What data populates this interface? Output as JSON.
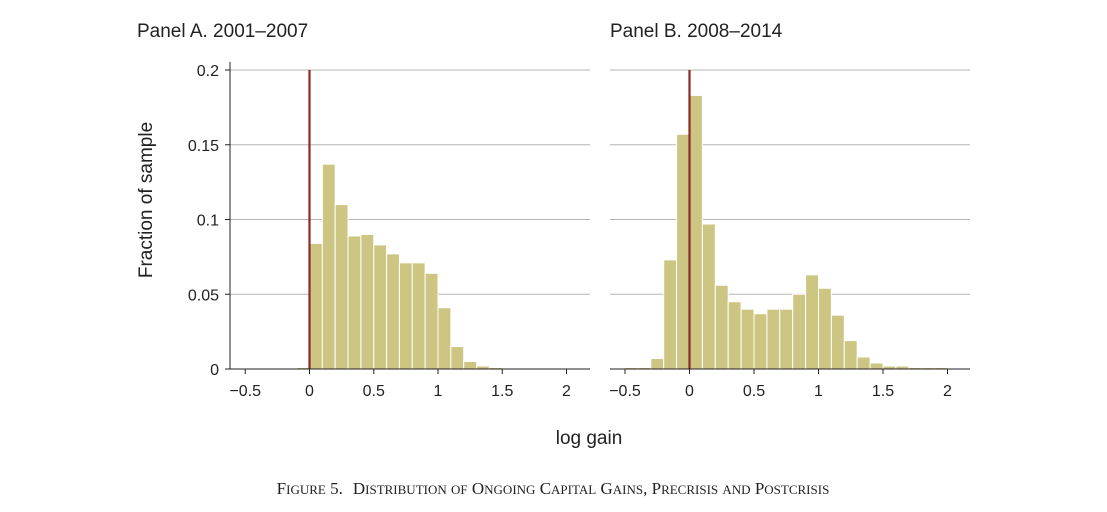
{
  "figure": {
    "ylabel": "Fraction of sample",
    "xlabel": "log gain",
    "caption": {
      "label": "Figure 5.",
      "title": "Distribution of Ongoing Capital Gains, Precrisis and Postcrisis"
    }
  },
  "colors": {
    "bar_fill": "#cdc682",
    "bar_edge": "#ffffff",
    "zero_line": "#8b2a2a",
    "grid": "#b5b5b5",
    "axis": "#222222"
  },
  "chart_data": [
    {
      "type": "bar",
      "title": "Panel A. 2001–2007",
      "xlabel": "log gain",
      "ylabel": "Fraction of sample",
      "xlim": [
        -0.6,
        2.1
      ],
      "ylim": [
        0,
        0.2
      ],
      "bin_width": 0.1,
      "bin_starts": [
        -0.6,
        -0.5,
        -0.4,
        -0.3,
        -0.2,
        -0.1,
        0.0,
        0.1,
        0.2,
        0.3,
        0.4,
        0.5,
        0.6,
        0.7,
        0.8,
        0.9,
        1.0,
        1.1,
        1.2,
        1.3,
        1.4,
        1.5,
        1.6,
        1.7,
        1.8,
        1.9,
        2.0
      ],
      "values": [
        0,
        0,
        0,
        0,
        0,
        0.001,
        0.084,
        0.137,
        0.11,
        0.089,
        0.09,
        0.083,
        0.077,
        0.071,
        0.071,
        0.064,
        0.041,
        0.015,
        0.005,
        0.002,
        0.001,
        0,
        0,
        0,
        0,
        0,
        0
      ],
      "xticks": [
        -0.5,
        0,
        0.5,
        1,
        1.5,
        2
      ],
      "xtick_labels": [
        "−0.5",
        "0",
        "0.5",
        "1",
        "1.5",
        "2"
      ],
      "yticks": [
        0,
        0.05,
        0.1,
        0.15,
        0.2
      ],
      "ytick_labels": [
        "0",
        "0.05",
        "0.1",
        "0.15",
        "0.2"
      ],
      "grid": true,
      "vline_x": 0
    },
    {
      "type": "bar",
      "title": "Panel B. 2008–2014",
      "xlabel": "log gain",
      "xlim": [
        -0.6,
        2.1
      ],
      "ylim": [
        0,
        0.2
      ],
      "bin_width": 0.1,
      "bin_starts": [
        -0.6,
        -0.5,
        -0.4,
        -0.3,
        -0.2,
        -0.1,
        0.0,
        0.1,
        0.2,
        0.3,
        0.4,
        0.5,
        0.6,
        0.7,
        0.8,
        0.9,
        1.0,
        1.1,
        1.2,
        1.3,
        1.4,
        1.5,
        1.6,
        1.7,
        1.8,
        1.9,
        2.0
      ],
      "values": [
        0,
        0.001,
        0.001,
        0.007,
        0.073,
        0.157,
        0.183,
        0.097,
        0.056,
        0.045,
        0.04,
        0.037,
        0.04,
        0.04,
        0.05,
        0.063,
        0.054,
        0.036,
        0.019,
        0.008,
        0.004,
        0.002,
        0.002,
        0.001,
        0.001,
        0.001,
        0
      ],
      "xticks": [
        -0.5,
        0,
        0.5,
        1,
        1.5,
        2
      ],
      "xtick_labels": [
        "−0.5",
        "0",
        "0.5",
        "1",
        "1.5",
        "2"
      ],
      "grid": true,
      "vline_x": 0
    }
  ]
}
